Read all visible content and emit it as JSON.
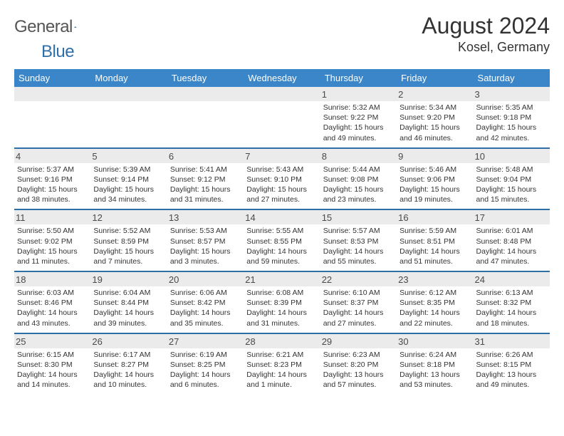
{
  "brand": {
    "name_a": "General",
    "name_b": "Blue"
  },
  "title": {
    "month": "August 2024",
    "location": "Kosel, Germany"
  },
  "colors": {
    "header_bg": "#3a86c8",
    "accent": "#2f6fa8",
    "band": "#ebebeb",
    "text": "#333333"
  },
  "weekdays": [
    "Sunday",
    "Monday",
    "Tuesday",
    "Wednesday",
    "Thursday",
    "Friday",
    "Saturday"
  ],
  "weeks": [
    [
      null,
      null,
      null,
      null,
      {
        "n": "1",
        "sr": "5:32 AM",
        "ss": "9:22 PM",
        "dl": "Daylight: 15 hours and 49 minutes."
      },
      {
        "n": "2",
        "sr": "5:34 AM",
        "ss": "9:20 PM",
        "dl": "Daylight: 15 hours and 46 minutes."
      },
      {
        "n": "3",
        "sr": "5:35 AM",
        "ss": "9:18 PM",
        "dl": "Daylight: 15 hours and 42 minutes."
      }
    ],
    [
      {
        "n": "4",
        "sr": "5:37 AM",
        "ss": "9:16 PM",
        "dl": "Daylight: 15 hours and 38 minutes."
      },
      {
        "n": "5",
        "sr": "5:39 AM",
        "ss": "9:14 PM",
        "dl": "Daylight: 15 hours and 34 minutes."
      },
      {
        "n": "6",
        "sr": "5:41 AM",
        "ss": "9:12 PM",
        "dl": "Daylight: 15 hours and 31 minutes."
      },
      {
        "n": "7",
        "sr": "5:43 AM",
        "ss": "9:10 PM",
        "dl": "Daylight: 15 hours and 27 minutes."
      },
      {
        "n": "8",
        "sr": "5:44 AM",
        "ss": "9:08 PM",
        "dl": "Daylight: 15 hours and 23 minutes."
      },
      {
        "n": "9",
        "sr": "5:46 AM",
        "ss": "9:06 PM",
        "dl": "Daylight: 15 hours and 19 minutes."
      },
      {
        "n": "10",
        "sr": "5:48 AM",
        "ss": "9:04 PM",
        "dl": "Daylight: 15 hours and 15 minutes."
      }
    ],
    [
      {
        "n": "11",
        "sr": "5:50 AM",
        "ss": "9:02 PM",
        "dl": "Daylight: 15 hours and 11 minutes."
      },
      {
        "n": "12",
        "sr": "5:52 AM",
        "ss": "8:59 PM",
        "dl": "Daylight: 15 hours and 7 minutes."
      },
      {
        "n": "13",
        "sr": "5:53 AM",
        "ss": "8:57 PM",
        "dl": "Daylight: 15 hours and 3 minutes."
      },
      {
        "n": "14",
        "sr": "5:55 AM",
        "ss": "8:55 PM",
        "dl": "Daylight: 14 hours and 59 minutes."
      },
      {
        "n": "15",
        "sr": "5:57 AM",
        "ss": "8:53 PM",
        "dl": "Daylight: 14 hours and 55 minutes."
      },
      {
        "n": "16",
        "sr": "5:59 AM",
        "ss": "8:51 PM",
        "dl": "Daylight: 14 hours and 51 minutes."
      },
      {
        "n": "17",
        "sr": "6:01 AM",
        "ss": "8:48 PM",
        "dl": "Daylight: 14 hours and 47 minutes."
      }
    ],
    [
      {
        "n": "18",
        "sr": "6:03 AM",
        "ss": "8:46 PM",
        "dl": "Daylight: 14 hours and 43 minutes."
      },
      {
        "n": "19",
        "sr": "6:04 AM",
        "ss": "8:44 PM",
        "dl": "Daylight: 14 hours and 39 minutes."
      },
      {
        "n": "20",
        "sr": "6:06 AM",
        "ss": "8:42 PM",
        "dl": "Daylight: 14 hours and 35 minutes."
      },
      {
        "n": "21",
        "sr": "6:08 AM",
        "ss": "8:39 PM",
        "dl": "Daylight: 14 hours and 31 minutes."
      },
      {
        "n": "22",
        "sr": "6:10 AM",
        "ss": "8:37 PM",
        "dl": "Daylight: 14 hours and 27 minutes."
      },
      {
        "n": "23",
        "sr": "6:12 AM",
        "ss": "8:35 PM",
        "dl": "Daylight: 14 hours and 22 minutes."
      },
      {
        "n": "24",
        "sr": "6:13 AM",
        "ss": "8:32 PM",
        "dl": "Daylight: 14 hours and 18 minutes."
      }
    ],
    [
      {
        "n": "25",
        "sr": "6:15 AM",
        "ss": "8:30 PM",
        "dl": "Daylight: 14 hours and 14 minutes."
      },
      {
        "n": "26",
        "sr": "6:17 AM",
        "ss": "8:27 PM",
        "dl": "Daylight: 14 hours and 10 minutes."
      },
      {
        "n": "27",
        "sr": "6:19 AM",
        "ss": "8:25 PM",
        "dl": "Daylight: 14 hours and 6 minutes."
      },
      {
        "n": "28",
        "sr": "6:21 AM",
        "ss": "8:23 PM",
        "dl": "Daylight: 14 hours and 1 minute."
      },
      {
        "n": "29",
        "sr": "6:23 AM",
        "ss": "8:20 PM",
        "dl": "Daylight: 13 hours and 57 minutes."
      },
      {
        "n": "30",
        "sr": "6:24 AM",
        "ss": "8:18 PM",
        "dl": "Daylight: 13 hours and 53 minutes."
      },
      {
        "n": "31",
        "sr": "6:26 AM",
        "ss": "8:15 PM",
        "dl": "Daylight: 13 hours and 49 minutes."
      }
    ]
  ]
}
